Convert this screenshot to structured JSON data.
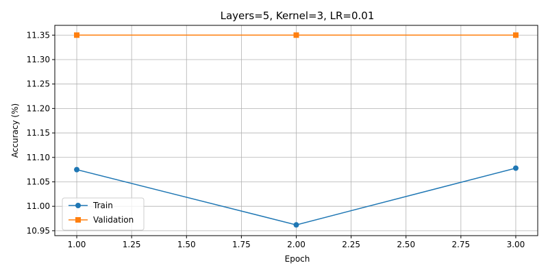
{
  "chart_data": {
    "type": "line",
    "title": "Layers=5, Kernel=3, LR=0.01",
    "xlabel": "Epoch",
    "ylabel": "Accuracy (%)",
    "x": [
      1.0,
      2.0,
      3.0
    ],
    "xlim": [
      0.9,
      3.1
    ],
    "ylim": [
      10.94,
      11.37
    ],
    "xticks": [
      1.0,
      1.25,
      1.5,
      1.75,
      2.0,
      2.25,
      2.5,
      2.75,
      3.0
    ],
    "xtick_labels": [
      "1.00",
      "1.25",
      "1.50",
      "1.75",
      "2.00",
      "2.25",
      "2.50",
      "2.75",
      "3.00"
    ],
    "yticks": [
      10.95,
      11.0,
      11.05,
      11.1,
      11.15,
      11.2,
      11.25,
      11.3,
      11.35
    ],
    "ytick_labels": [
      "10.95",
      "11.00",
      "11.05",
      "11.10",
      "11.15",
      "11.20",
      "11.25",
      "11.30",
      "11.35"
    ],
    "grid": true,
    "legend_position": "lower-left",
    "series": [
      {
        "name": "Train",
        "values": [
          11.075,
          10.962,
          11.078
        ],
        "color": "#1f77b4",
        "marker": "circle"
      },
      {
        "name": "Validation",
        "values": [
          11.35,
          11.35,
          11.35
        ],
        "color": "#ff7f0e",
        "marker": "square"
      }
    ]
  }
}
